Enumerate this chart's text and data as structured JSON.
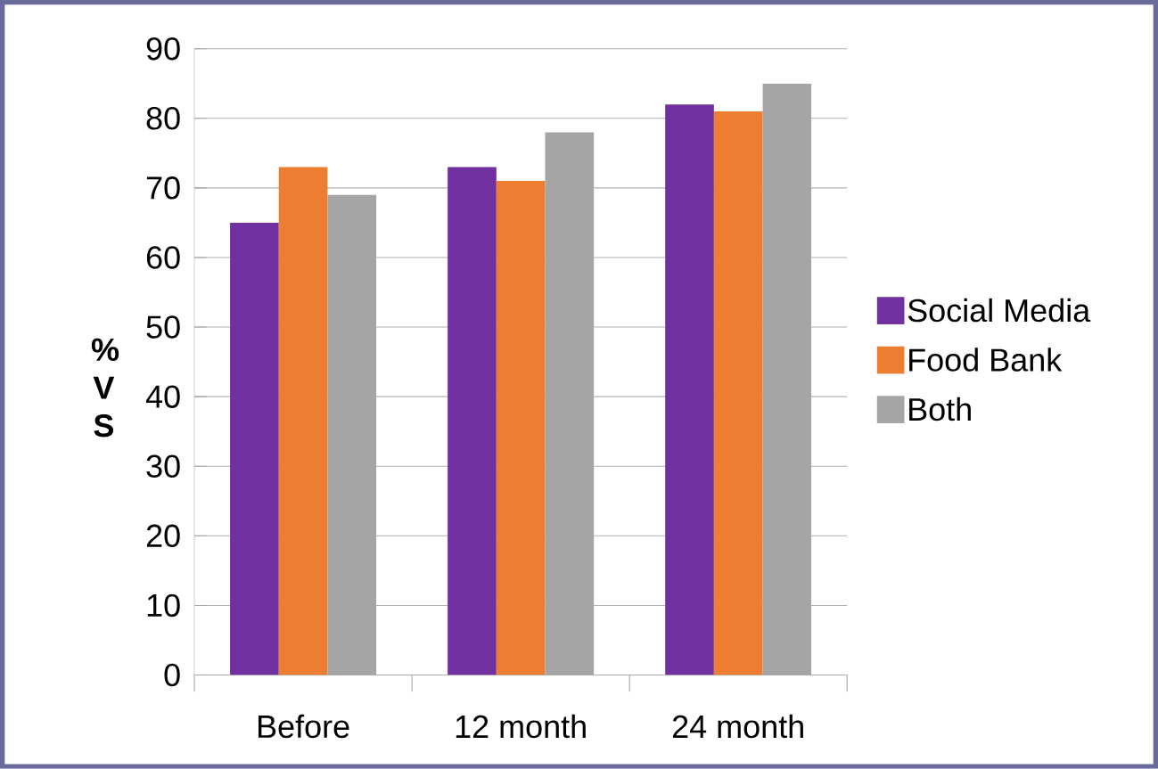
{
  "chart_data": {
    "type": "bar",
    "ylabel": "% V S",
    "categories": [
      "Before",
      "12 month",
      "24 month"
    ],
    "series": [
      {
        "name": "Social Media",
        "color": "#7030a0",
        "values": [
          65,
          73,
          82
        ]
      },
      {
        "name": "Food Bank",
        "color": "#ed7d31",
        "values": [
          73,
          71,
          81
        ]
      },
      {
        "name": "Both",
        "color": "#a5a5a5",
        "values": [
          69,
          78,
          85
        ]
      }
    ],
    "ylim": [
      0,
      90
    ],
    "yticks": [
      0,
      10,
      20,
      30,
      40,
      50,
      60,
      70,
      80,
      90
    ],
    "grid": "y",
    "legend": "right"
  }
}
